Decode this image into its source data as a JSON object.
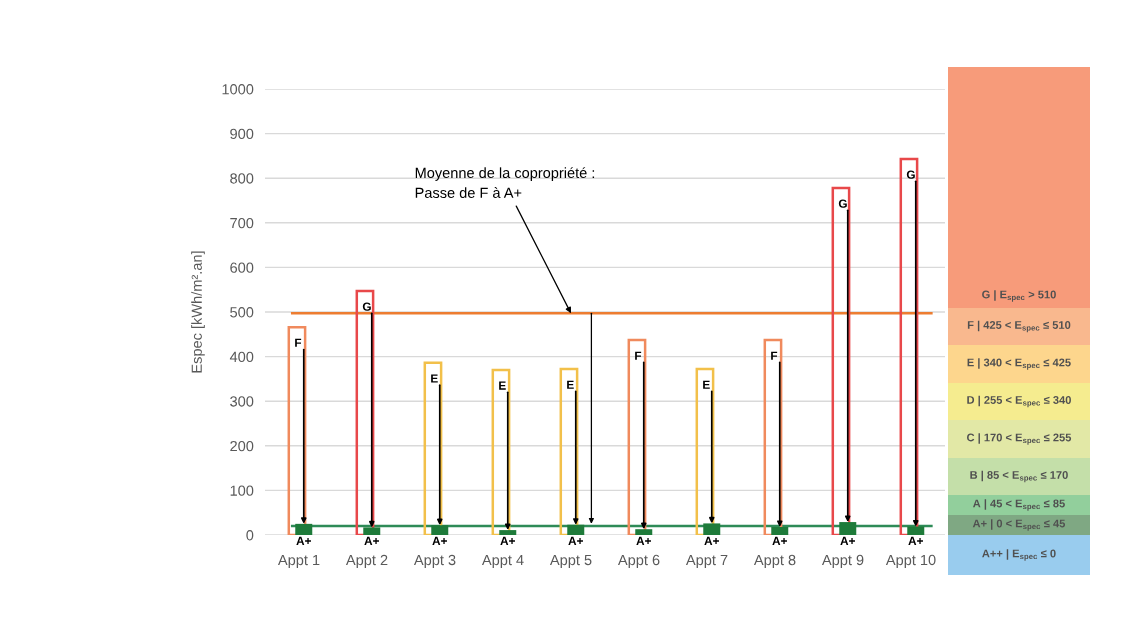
{
  "chart_data": [
    {
      "type": "bar",
      "ylabel": "Espec [kWh/m².an]",
      "categories": [
        "Appt 1",
        "Appt 2",
        "Appt 3",
        "Appt 4",
        "Appt 5",
        "Appt 6",
        "Appt 7",
        "Appt 8",
        "Appt 9",
        "Appt 10"
      ],
      "series": [
        {
          "type": "bar",
          "colors": [
            "#f08a5d",
            "#e8484a",
            "#f2c04a",
            "#f2c04a",
            "#f2c04a",
            "#f08a5d",
            "#f2c04a",
            "#f08a5d",
            "#e8484a",
            "#e8484a"
          ],
          "values": [
            466,
            547,
            386,
            370,
            372,
            437,
            372,
            437,
            778,
            843
          ],
          "value_labels": [
            "F",
            "G",
            "E",
            "E",
            "E",
            "F",
            "E",
            "F",
            "G",
            "G"
          ]
        },
        {
          "type": "bar",
          "color": "#1e7b3a",
          "values": [
            25,
            17,
            22,
            11,
            23,
            13,
            26,
            18,
            29,
            19
          ],
          "value_labels": [
            "A+",
            "A+",
            "A+",
            "A+",
            "A+",
            "A+",
            "A+",
            "A+",
            "A+",
            "A+"
          ]
        }
      ],
      "ylim": [
        0,
        1000
      ],
      "yticks": [
        0,
        100,
        200,
        300,
        400,
        500,
        600,
        700,
        800,
        900,
        1000
      ],
      "grid": "y",
      "ref_lines": [
        {
          "axis": "y",
          "value": 497,
          "color": "#ed7d31"
        },
        {
          "axis": "y",
          "value": 20,
          "color": "#2e8b57"
        }
      ],
      "annotations": [
        {
          "text": "Moyenne de la copropriété :\nPasse de F à A+",
          "x": "Appt 5",
          "y": 497
        }
      ]
    },
    {
      "type": "other",
      "categories": [
        "G | E$_{spec}$ > 510",
        "F | 425 < E$_{spec}$ ≤ 510",
        "E | 340 < E$_{spec}$ ≤ 425",
        "D | 255 < E$_{spec}$ ≤ 340",
        "C | 170 < E$_{spec}$ ≤ 255",
        "B | 85 < E$_{spec}$ ≤ 170",
        "A | 45 < E$_{spec}$ ≤ 85",
        "A+ | 0 < E$_{spec}$ ≤ 45",
        "A++ | E$_{spec}$ ≤ 0"
      ],
      "colors": [
        "#f79b7a",
        "#f9b88e",
        "#fdd68d",
        "#f5ec8f",
        "#e2e8a6",
        "#c4dfa9",
        "#92cf9c",
        "#7fa883",
        "#99ccee"
      ]
    }
  ]
}
